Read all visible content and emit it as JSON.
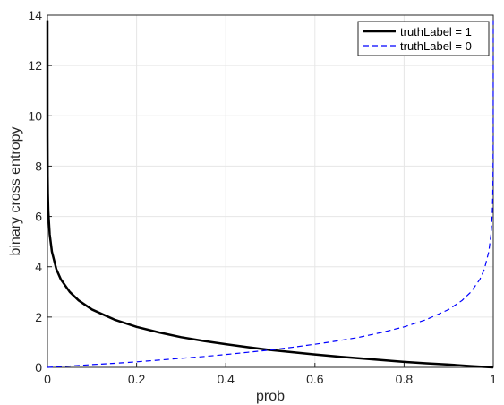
{
  "chart_data": {
    "type": "line",
    "xlabel": "prob",
    "ylabel": "binary cross entropy",
    "xlim": [
      0,
      1
    ],
    "ylim": [
      0,
      14
    ],
    "xticks": [
      0,
      0.2,
      0.4,
      0.6,
      0.8,
      1
    ],
    "xtick_labels": [
      "0",
      "0.2",
      "0.4",
      "0.6",
      "0.8",
      "1"
    ],
    "yticks": [
      0,
      2,
      4,
      6,
      8,
      10,
      12,
      14
    ],
    "ytick_labels": [
      "0",
      "2",
      "4",
      "6",
      "8",
      "10",
      "12",
      "14"
    ],
    "grid": true,
    "legend_position": "top-right",
    "series": [
      {
        "name": "truthLabel = 1",
        "style": "solid",
        "color": "#000000",
        "x": [
          1e-06,
          0.0001,
          0.0005,
          0.001,
          0.002,
          0.005,
          0.01,
          0.02,
          0.03,
          0.05,
          0.07,
          0.1,
          0.15,
          0.2,
          0.25,
          0.3,
          0.35,
          0.4,
          0.45,
          0.5,
          0.55,
          0.6,
          0.65,
          0.7,
          0.75,
          0.8,
          0.85,
          0.9,
          0.95,
          0.99,
          1.0
        ],
        "y": [
          13.8,
          9.2,
          7.6,
          6.9,
          6.2,
          5.3,
          4.6,
          3.9,
          3.5,
          3.0,
          2.66,
          2.3,
          1.9,
          1.61,
          1.39,
          1.2,
          1.05,
          0.92,
          0.8,
          0.69,
          0.6,
          0.51,
          0.43,
          0.36,
          0.29,
          0.22,
          0.16,
          0.11,
          0.05,
          0.01,
          0.0
        ]
      },
      {
        "name": "truthLabel = 0",
        "style": "dashed",
        "color": "#0000ff",
        "x": [
          0.0,
          0.01,
          0.05,
          0.1,
          0.15,
          0.2,
          0.25,
          0.3,
          0.35,
          0.4,
          0.45,
          0.5,
          0.55,
          0.6,
          0.65,
          0.7,
          0.75,
          0.8,
          0.85,
          0.9,
          0.93,
          0.95,
          0.97,
          0.98,
          0.99,
          0.995,
          0.998,
          0.999,
          0.9995,
          0.9999,
          0.999999
        ],
        "y": [
          0.0,
          0.01,
          0.05,
          0.11,
          0.16,
          0.22,
          0.29,
          0.36,
          0.43,
          0.51,
          0.6,
          0.69,
          0.8,
          0.92,
          1.05,
          1.2,
          1.39,
          1.61,
          1.9,
          2.3,
          2.66,
          3.0,
          3.5,
          3.9,
          4.6,
          5.3,
          6.2,
          6.9,
          7.6,
          9.2,
          13.8
        ]
      }
    ]
  }
}
